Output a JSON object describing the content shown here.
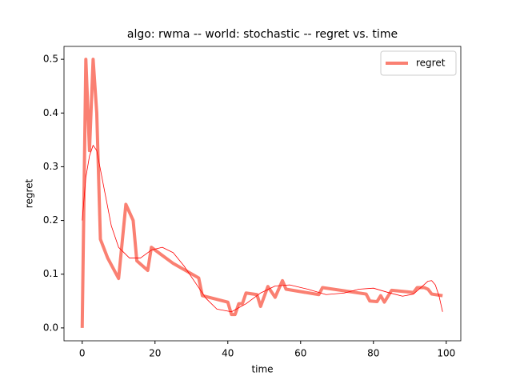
{
  "chart_data": {
    "type": "line",
    "title": "algo: rwma -- world: stochastic -- regret vs. time",
    "xlabel": "time",
    "ylabel": "regret",
    "xlim": [
      -5,
      104
    ],
    "xticks": [
      0,
      20,
      40,
      60,
      80,
      100
    ],
    "ylim": [
      -0.024,
      0.524
    ],
    "yticks": [
      {
        "value": 0,
        "label": "0.0"
      },
      0.1,
      0.2,
      0.3,
      0.4,
      0.5
    ],
    "legend": "upper right",
    "series": [
      {
        "name": "regret",
        "color": "#fa8072",
        "width": 4,
        "x": [
          0,
          1,
          2,
          3,
          4,
          5,
          7,
          10,
          12,
          14,
          15,
          18,
          19,
          22,
          25,
          32,
          33,
          40,
          41,
          42,
          43,
          44,
          45,
          48,
          49,
          51,
          53,
          55,
          56,
          65,
          66,
          78,
          79,
          81,
          82,
          83,
          85,
          91,
          92,
          94,
          95,
          96,
          99
        ],
        "values": [
          0,
          0.5,
          0.33,
          0.5,
          0.4,
          0.165,
          0.13,
          0.092,
          0.23,
          0.2,
          0.125,
          0.107,
          0.15,
          0.135,
          0.12,
          0.093,
          0.06,
          0.048,
          0.025,
          0.025,
          0.045,
          0.045,
          0.065,
          0.062,
          0.04,
          0.077,
          0.057,
          0.088,
          0.072,
          0.062,
          0.075,
          0.063,
          0.05,
          0.049,
          0.06,
          0.048,
          0.07,
          0.066,
          0.075,
          0.075,
          0.072,
          0.063,
          0.06
        ]
      },
      {
        "color": "#ff0000",
        "width": 0.8,
        "x": [
          0,
          1,
          2,
          3,
          4,
          6,
          8,
          10,
          13,
          16,
          19,
          22,
          25,
          28,
          31,
          34,
          37,
          41,
          45,
          49,
          53,
          57,
          62,
          67,
          72,
          76,
          80,
          84,
          88,
          91,
          93,
          95,
          96,
          97,
          98,
          99
        ],
        "values": [
          0.2,
          0.28,
          0.32,
          0.34,
          0.33,
          0.26,
          0.19,
          0.15,
          0.13,
          0.13,
          0.145,
          0.15,
          0.14,
          0.115,
          0.085,
          0.055,
          0.035,
          0.03,
          0.045,
          0.065,
          0.078,
          0.08,
          0.072,
          0.062,
          0.065,
          0.072,
          0.074,
          0.066,
          0.059,
          0.063,
          0.075,
          0.087,
          0.088,
          0.08,
          0.06,
          0.03
        ]
      }
    ]
  }
}
